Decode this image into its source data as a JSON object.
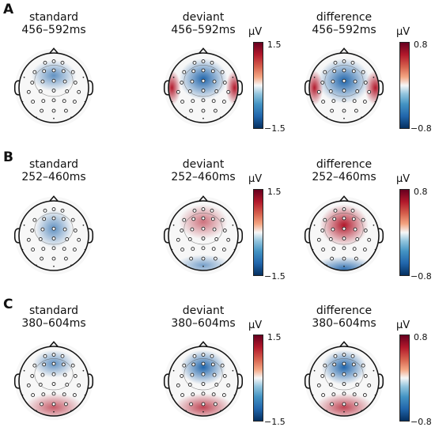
{
  "rows": [
    {
      "letter": "A",
      "maps": [
        {
          "condition": "standard",
          "window": "456–592ms",
          "hot": [],
          "cold": [
            [
              0,
              -0.35,
              0.65,
              0.45,
              0.3,
              0.7
            ]
          ]
        },
        {
          "condition": "deviant",
          "window": "456–592ms",
          "hot": [
            [
              -0.9,
              0.0,
              0.25,
              0.5,
              0.5,
              1.0
            ],
            [
              0.9,
              0.0,
              0.25,
              0.5,
              0.5,
              1.0
            ]
          ],
          "cold": [
            [
              0,
              -0.25,
              0.7,
              0.6,
              0.6,
              1.0
            ]
          ]
        },
        {
          "condition": "difference",
          "window": "456–592ms",
          "hot": [
            [
              -0.85,
              0.0,
              0.25,
              0.5,
              0.5,
              1.0
            ],
            [
              0.9,
              0.0,
              0.3,
              0.5,
              0.55,
              1.0
            ]
          ],
          "cold": [
            [
              0,
              -0.2,
              0.75,
              0.65,
              0.6,
              1.0
            ]
          ]
        }
      ],
      "colorbars": [
        {
          "unit": "μV",
          "max": "1.5",
          "min": "−1.5"
        },
        {
          "unit": "μV",
          "max": "0.8",
          "min": "−0.8"
        }
      ]
    },
    {
      "letter": "B",
      "maps": [
        {
          "condition": "standard",
          "window": "252–460ms",
          "hot": [],
          "cold": [
            [
              0,
              -0.2,
              0.55,
              0.55,
              0.35,
              0.7
            ]
          ]
        },
        {
          "condition": "deviant",
          "window": "252–460ms",
          "hot": [
            [
              0,
              -0.4,
              0.7,
              0.5,
              0.15,
              0.6
            ]
          ],
          "cold": [
            [
              0,
              0.85,
              0.8,
              0.3,
              0.12,
              0.6
            ]
          ]
        },
        {
          "condition": "difference",
          "window": "252–460ms",
          "hot": [
            [
              0,
              -0.3,
              0.7,
              0.6,
              0.65,
              1.0
            ]
          ],
          "cold": [
            [
              0,
              0.95,
              0.95,
              0.35,
              0.5,
              0.9
            ]
          ]
        }
      ],
      "colorbars": [
        {
          "unit": "μV",
          "max": "1.5",
          "min": "−1.5"
        },
        {
          "unit": "μV",
          "max": "0.8",
          "min": "−0.8"
        }
      ]
    },
    {
      "letter": "C",
      "maps": [
        {
          "condition": "standard",
          "window": "380–604ms",
          "hot": [
            [
              0,
              0.75,
              0.85,
              0.4,
              0.2,
              0.7
            ]
          ],
          "cold": [
            [
              0,
              -0.5,
              0.6,
              0.4,
              0.3,
              0.7
            ]
          ]
        },
        {
          "condition": "deviant",
          "window": "380–604ms",
          "hot": [
            [
              0,
              0.75,
              0.85,
              0.4,
              0.3,
              0.8
            ]
          ],
          "cold": [
            [
              0,
              -0.4,
              0.65,
              0.5,
              0.55,
              1.0
            ]
          ]
        },
        {
          "condition": "difference",
          "window": "380–604ms",
          "hot": [
            [
              0,
              0.75,
              0.85,
              0.4,
              0.3,
              0.8
            ]
          ],
          "cold": [
            [
              0,
              -0.4,
              0.65,
              0.5,
              0.5,
              1.0
            ]
          ]
        }
      ],
      "colorbars": [
        {
          "unit": "μV",
          "max": "1.5",
          "min": "−1.5"
        },
        {
          "unit": "μV",
          "max": "0.8",
          "min": "−0.8"
        }
      ]
    }
  ],
  "colors": {
    "positive_peak": "#b2182b",
    "negative_peak": "#2166ac",
    "neutral": "#f7f7f7",
    "outline": "#111111"
  }
}
